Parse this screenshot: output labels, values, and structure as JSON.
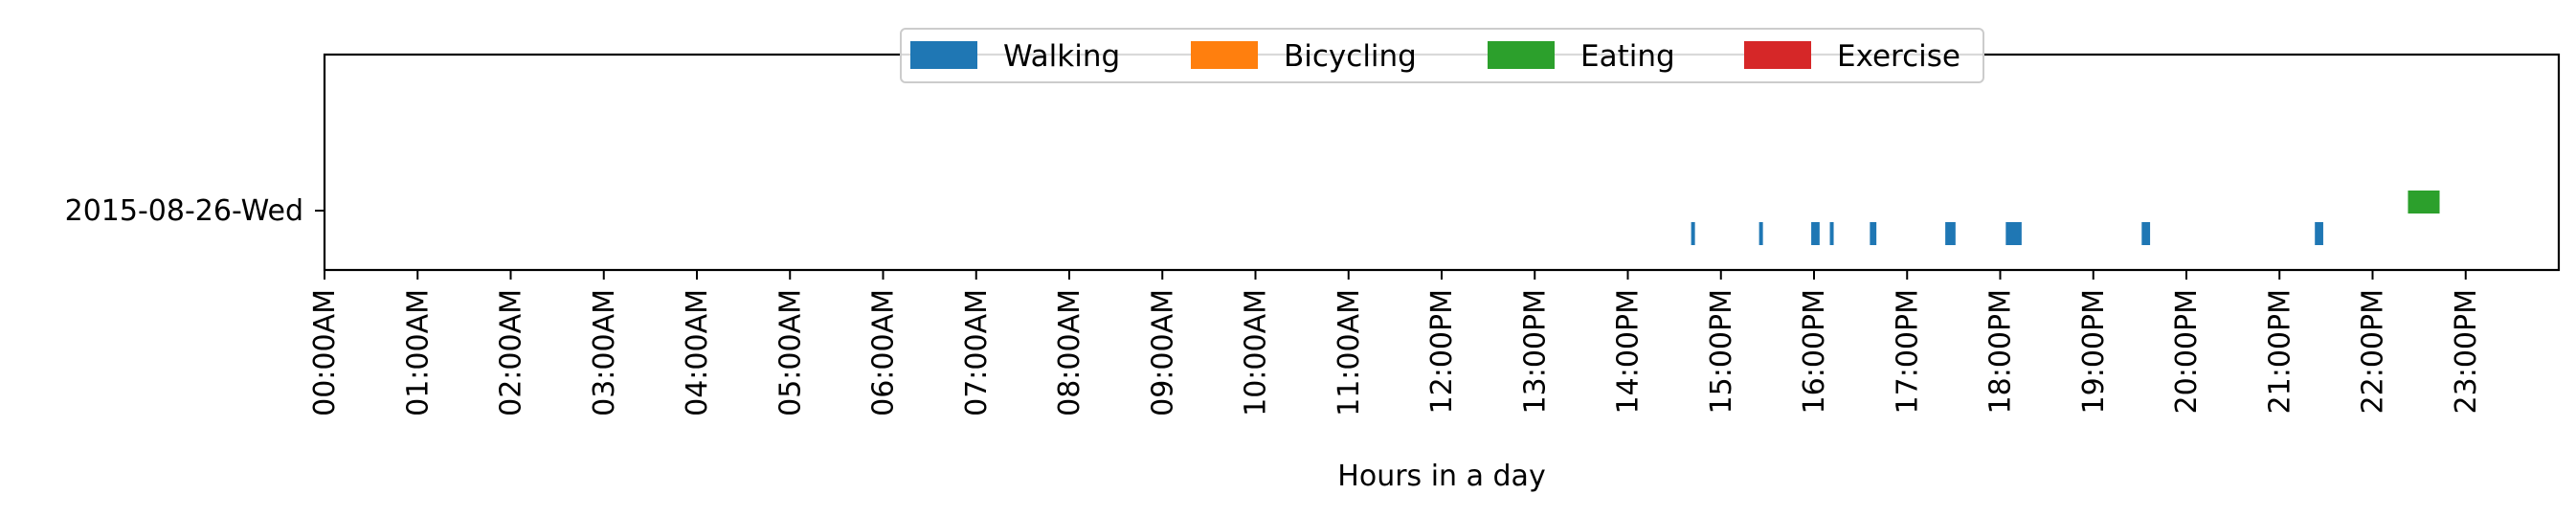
{
  "chart_data": {
    "type": "bar",
    "orientation": "horizontal-timeline",
    "title": "",
    "xlabel": "Hours in a day",
    "ylabel": "",
    "xlim": [
      0,
      24
    ],
    "categories": [
      "2015-08-26-Wed"
    ],
    "x_ticks": [
      {
        "value": 0,
        "label": "00:00AM"
      },
      {
        "value": 1,
        "label": "01:00AM"
      },
      {
        "value": 2,
        "label": "02:00AM"
      },
      {
        "value": 3,
        "label": "03:00AM"
      },
      {
        "value": 4,
        "label": "04:00AM"
      },
      {
        "value": 5,
        "label": "05:00AM"
      },
      {
        "value": 6,
        "label": "06:00AM"
      },
      {
        "value": 7,
        "label": "07:00AM"
      },
      {
        "value": 8,
        "label": "08:00AM"
      },
      {
        "value": 9,
        "label": "09:00AM"
      },
      {
        "value": 10,
        "label": "10:00AM"
      },
      {
        "value": 11,
        "label": "11:00AM"
      },
      {
        "value": 12,
        "label": "12:00PM"
      },
      {
        "value": 13,
        "label": "13:00PM"
      },
      {
        "value": 14,
        "label": "14:00PM"
      },
      {
        "value": 15,
        "label": "15:00PM"
      },
      {
        "value": 16,
        "label": "16:00PM"
      },
      {
        "value": 17,
        "label": "17:00PM"
      },
      {
        "value": 18,
        "label": "18:00PM"
      },
      {
        "value": 19,
        "label": "19:00PM"
      },
      {
        "value": 20,
        "label": "20:00PM"
      },
      {
        "value": 21,
        "label": "21:00PM"
      },
      {
        "value": 22,
        "label": "22:00PM"
      },
      {
        "value": 23,
        "label": "23:00PM"
      }
    ],
    "legend": {
      "placement": "top-center",
      "columns": 4
    },
    "grid": false,
    "series": [
      {
        "name": "Walking",
        "color": "#1f77b4",
        "intervals": [
          {
            "start": 14.68,
            "end": 14.72
          },
          {
            "start": 15.41,
            "end": 15.44
          },
          {
            "start": 15.97,
            "end": 16.06
          },
          {
            "start": 16.17,
            "end": 16.2
          },
          {
            "start": 16.6,
            "end": 16.67
          },
          {
            "start": 17.41,
            "end": 17.52
          },
          {
            "start": 18.06,
            "end": 18.23
          },
          {
            "start": 19.52,
            "end": 19.61
          },
          {
            "start": 21.38,
            "end": 21.47
          }
        ]
      },
      {
        "name": "Bicycling",
        "color": "#ff7f0e",
        "intervals": []
      },
      {
        "name": "Eating",
        "color": "#2ca02c",
        "intervals": [
          {
            "start": 22.38,
            "end": 22.72
          }
        ]
      },
      {
        "name": "Exercise",
        "color": "#d62728",
        "intervals": []
      }
    ]
  }
}
